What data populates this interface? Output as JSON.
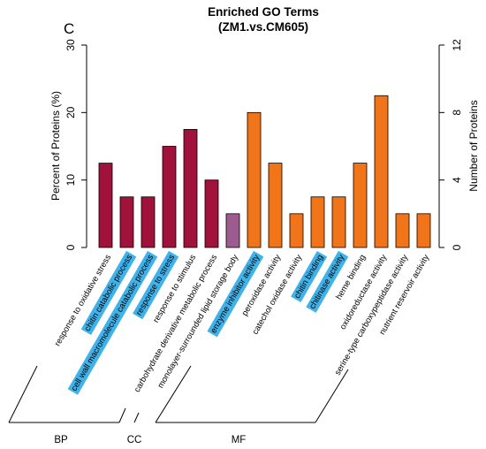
{
  "figure": {
    "panel_letter": "C",
    "title_line1": "Enriched GO Terms",
    "title_line2": "(ZM1.vs.CM605)"
  },
  "chart_data": {
    "type": "bar",
    "title": "Enriched GO Terms (ZM1.vs.CM605)",
    "ylabel_left": "Percent of Proteins (%)",
    "ylabel_right": "Number of Proteins",
    "ylim_left": [
      0,
      30
    ],
    "ylim_right": [
      0,
      12
    ],
    "yticks_left": [
      0,
      10,
      20,
      30
    ],
    "yticks_right": [
      0,
      4,
      8,
      12
    ],
    "grid": false,
    "categories": [
      "response to oxidative stress",
      "chitin catabolic process",
      "cell wall macromolecule catabolic process",
      "response to stress",
      "response to stimulus",
      "carbohydrate derivative metabolic process",
      "monolayer-surrounded lipid storage body",
      "enzyme inhibitor activity",
      "peroxidase activity",
      "catechol oxidase activity",
      "chitin binding",
      "chitinase activity",
      "heme binding",
      "oxidoreductase activity",
      "serine-type carboxypeptidase activity",
      "nutrient reservoir activity"
    ],
    "values_percent": [
      12.5,
      7.5,
      7.5,
      15.0,
      17.5,
      10.0,
      5.0,
      20.0,
      12.5,
      5.0,
      7.5,
      7.5,
      12.5,
      22.5,
      5.0,
      5.0
    ],
    "values_count": [
      5,
      3,
      3,
      6,
      7,
      4,
      2,
      8,
      5,
      2,
      3,
      3,
      5,
      9,
      2,
      2
    ],
    "groups": [
      "BP",
      "BP",
      "BP",
      "BP",
      "BP",
      "BP",
      "CC",
      "MF",
      "MF",
      "MF",
      "MF",
      "MF",
      "MF",
      "MF",
      "MF",
      "MF"
    ],
    "highlighted": [
      false,
      true,
      true,
      true,
      false,
      false,
      false,
      true,
      false,
      false,
      true,
      true,
      false,
      false,
      false,
      false
    ],
    "group_labels": [
      "BP",
      "CC",
      "MF"
    ],
    "colors": {
      "BP": "#a0123b",
      "CC": "#9c5c8f",
      "MF": "#f27418",
      "highlight": "#3fb2ea",
      "edge": "#000000"
    }
  }
}
